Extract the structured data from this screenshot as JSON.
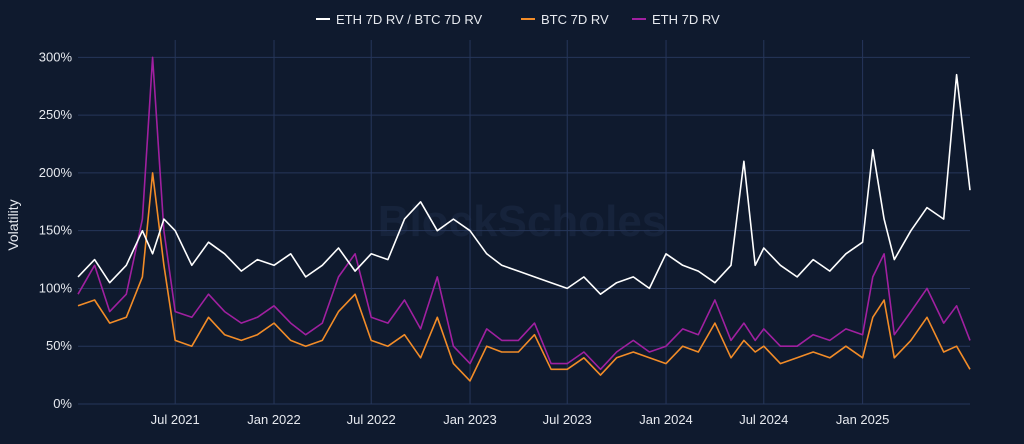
{
  "chart_data": {
    "type": "line",
    "title": "",
    "xlabel": "",
    "ylabel": "Volatility",
    "watermark": "BlockScholes",
    "x_range": [
      "2021-01-01",
      "2025-07-20"
    ],
    "ylim": [
      0,
      315
    ],
    "y_ticks": [
      0,
      50,
      100,
      150,
      200,
      250,
      300
    ],
    "y_tick_labels": [
      "0%",
      "50%",
      "100%",
      "150%",
      "200%",
      "250%",
      "300%"
    ],
    "x_ticks": [
      "2021-07-01",
      "2022-01-01",
      "2022-07-01",
      "2023-01-01",
      "2023-07-01",
      "2024-01-01",
      "2024-07-01",
      "2025-01-01"
    ],
    "x_tick_labels": [
      "Jul 2021",
      "Jan 2022",
      "Jul 2022",
      "Jan 2023",
      "Jul 2023",
      "Jan 2024",
      "Jul 2024",
      "Jan 2025"
    ],
    "grid": true,
    "legend_position": "top-center",
    "series": [
      {
        "name": "ETH 7D RV / BTC 7D RV",
        "color": "#ffffff",
        "x": [
          "2021-01-01",
          "2021-02-01",
          "2021-03-01",
          "2021-04-01",
          "2021-05-01",
          "2021-05-20",
          "2021-06-10",
          "2021-07-01",
          "2021-08-01",
          "2021-09-01",
          "2021-10-01",
          "2021-11-01",
          "2021-12-01",
          "2022-01-01",
          "2022-02-01",
          "2022-03-01",
          "2022-04-01",
          "2022-05-01",
          "2022-06-01",
          "2022-07-01",
          "2022-08-01",
          "2022-09-01",
          "2022-10-01",
          "2022-11-01",
          "2022-12-01",
          "2023-01-01",
          "2023-02-01",
          "2023-03-01",
          "2023-04-01",
          "2023-05-01",
          "2023-06-01",
          "2023-07-01",
          "2023-08-01",
          "2023-09-01",
          "2023-10-01",
          "2023-11-01",
          "2023-12-01",
          "2024-01-01",
          "2024-02-01",
          "2024-03-01",
          "2024-04-01",
          "2024-05-01",
          "2024-05-25",
          "2024-06-15",
          "2024-07-01",
          "2024-08-01",
          "2024-09-01",
          "2024-10-01",
          "2024-11-01",
          "2024-12-01",
          "2025-01-01",
          "2025-01-20",
          "2025-02-10",
          "2025-03-01",
          "2025-04-01",
          "2025-05-01",
          "2025-06-01",
          "2025-06-25",
          "2025-07-20"
        ],
        "values": [
          110,
          125,
          105,
          120,
          150,
          130,
          160,
          150,
          120,
          140,
          130,
          115,
          125,
          120,
          130,
          110,
          120,
          135,
          115,
          130,
          125,
          160,
          175,
          150,
          160,
          150,
          130,
          120,
          115,
          110,
          105,
          100,
          110,
          95,
          105,
          110,
          100,
          130,
          120,
          115,
          105,
          120,
          210,
          120,
          135,
          120,
          110,
          125,
          115,
          130,
          140,
          220,
          160,
          125,
          150,
          170,
          160,
          285,
          185
        ]
      },
      {
        "name": "BTC 7D RV",
        "color": "#f28c28",
        "x": [
          "2021-01-01",
          "2021-02-01",
          "2021-03-01",
          "2021-04-01",
          "2021-05-01",
          "2021-05-20",
          "2021-06-10",
          "2021-07-01",
          "2021-08-01",
          "2021-09-01",
          "2021-10-01",
          "2021-11-01",
          "2021-12-01",
          "2022-01-01",
          "2022-02-01",
          "2022-03-01",
          "2022-04-01",
          "2022-05-01",
          "2022-06-01",
          "2022-07-01",
          "2022-08-01",
          "2022-09-01",
          "2022-10-01",
          "2022-11-01",
          "2022-12-01",
          "2023-01-01",
          "2023-02-01",
          "2023-03-01",
          "2023-04-01",
          "2023-05-01",
          "2023-06-01",
          "2023-07-01",
          "2023-08-01",
          "2023-09-01",
          "2023-10-01",
          "2023-11-01",
          "2023-12-01",
          "2024-01-01",
          "2024-02-01",
          "2024-03-01",
          "2024-04-01",
          "2024-05-01",
          "2024-05-25",
          "2024-06-15",
          "2024-07-01",
          "2024-08-01",
          "2024-09-01",
          "2024-10-01",
          "2024-11-01",
          "2024-12-01",
          "2025-01-01",
          "2025-01-20",
          "2025-02-10",
          "2025-03-01",
          "2025-04-01",
          "2025-05-01",
          "2025-06-01",
          "2025-06-25",
          "2025-07-20"
        ],
        "values": [
          85,
          90,
          70,
          75,
          110,
          200,
          120,
          55,
          50,
          75,
          60,
          55,
          60,
          70,
          55,
          50,
          55,
          80,
          95,
          55,
          50,
          60,
          40,
          75,
          35,
          20,
          50,
          45,
          45,
          60,
          30,
          30,
          40,
          25,
          40,
          45,
          40,
          35,
          50,
          45,
          70,
          40,
          55,
          45,
          50,
          35,
          40,
          45,
          40,
          50,
          40,
          75,
          90,
          40,
          55,
          75,
          45,
          50,
          30
        ]
      },
      {
        "name": "ETH 7D RV",
        "color": "#a020a0",
        "x": [
          "2021-01-01",
          "2021-02-01",
          "2021-03-01",
          "2021-04-01",
          "2021-05-01",
          "2021-05-20",
          "2021-06-10",
          "2021-07-01",
          "2021-08-01",
          "2021-09-01",
          "2021-10-01",
          "2021-11-01",
          "2021-12-01",
          "2022-01-01",
          "2022-02-01",
          "2022-03-01",
          "2022-04-01",
          "2022-05-01",
          "2022-06-01",
          "2022-07-01",
          "2022-08-01",
          "2022-09-01",
          "2022-10-01",
          "2022-11-01",
          "2022-12-01",
          "2023-01-01",
          "2023-02-01",
          "2023-03-01",
          "2023-04-01",
          "2023-05-01",
          "2023-06-01",
          "2023-07-01",
          "2023-08-01",
          "2023-09-01",
          "2023-10-01",
          "2023-11-01",
          "2023-12-01",
          "2024-01-01",
          "2024-02-01",
          "2024-03-01",
          "2024-04-01",
          "2024-05-01",
          "2024-05-25",
          "2024-06-15",
          "2024-07-01",
          "2024-08-01",
          "2024-09-01",
          "2024-10-01",
          "2024-11-01",
          "2024-12-01",
          "2025-01-01",
          "2025-01-20",
          "2025-02-10",
          "2025-03-01",
          "2025-04-01",
          "2025-05-01",
          "2025-06-01",
          "2025-06-25",
          "2025-07-20"
        ],
        "values": [
          95,
          120,
          80,
          95,
          160,
          300,
          150,
          80,
          75,
          95,
          80,
          70,
          75,
          85,
          70,
          60,
          70,
          110,
          130,
          75,
          70,
          90,
          65,
          110,
          50,
          35,
          65,
          55,
          55,
          70,
          35,
          35,
          45,
          30,
          45,
          55,
          45,
          50,
          65,
          60,
          90,
          55,
          70,
          55,
          65,
          50,
          50,
          60,
          55,
          65,
          60,
          110,
          130,
          60,
          80,
          100,
          70,
          85,
          55
        ]
      }
    ]
  }
}
